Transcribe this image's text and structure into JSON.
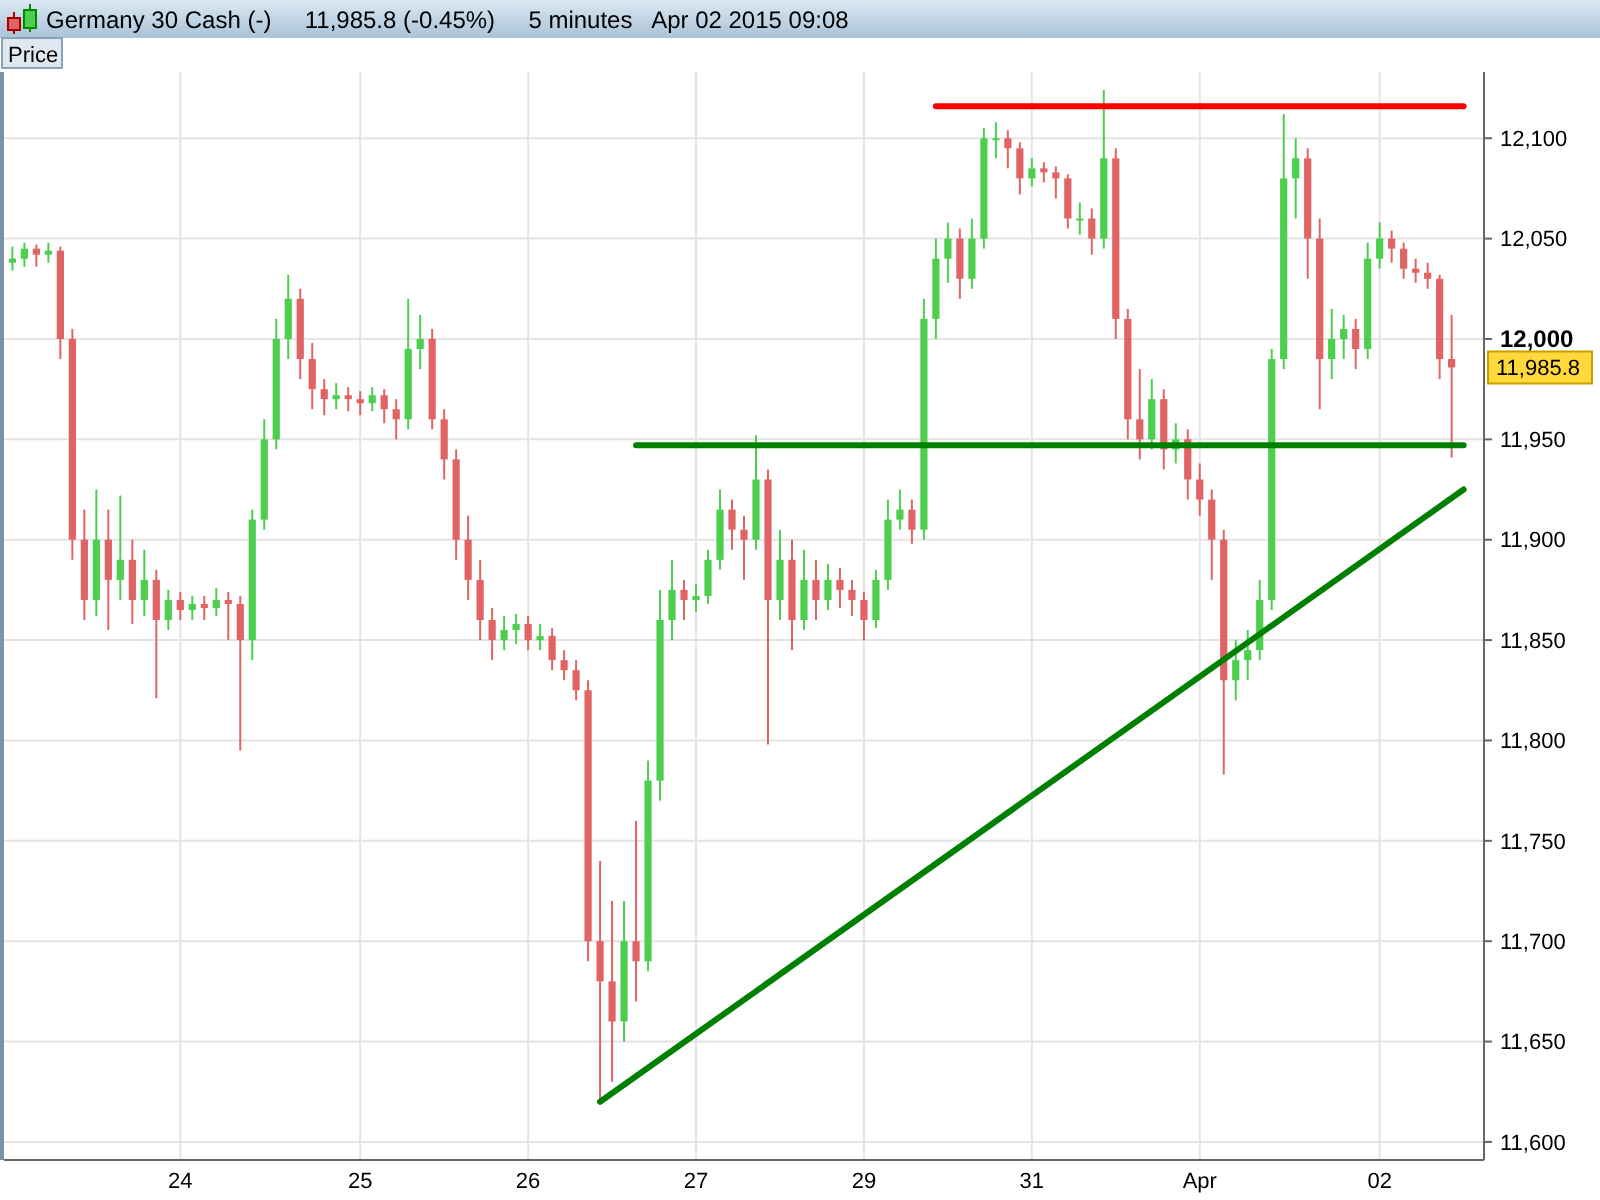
{
  "chart_data": {
    "type": "candlestick",
    "title": "Germany 30 Cash (-)     11,985.8 (-0.45%)     5 minutes   Apr 02 2015 09:08",
    "annotations": [
      "Price",
      "11,985.8"
    ],
    "categories": [
      null,
      null,
      null,
      null,
      null,
      null,
      null,
      null,
      null,
      null,
      null,
      null,
      null,
      null,
      "24",
      null,
      null,
      null,
      null,
      null,
      null,
      null,
      null,
      null,
      null,
      null,
      null,
      null,
      null,
      "25",
      null,
      null,
      null,
      null,
      null,
      null,
      null,
      null,
      null,
      null,
      null,
      null,
      null,
      "26",
      null,
      null,
      null,
      null,
      null,
      null,
      null,
      null,
      null,
      null,
      null,
      null,
      null,
      "27",
      null,
      null,
      null,
      null,
      null,
      null,
      null,
      null,
      null,
      null,
      null,
      null,
      null,
      "29",
      null,
      null,
      null,
      null,
      null,
      null,
      null,
      null,
      null,
      null,
      null,
      null,
      null,
      "31",
      null,
      null,
      null,
      null,
      null,
      null,
      null,
      null,
      null,
      null,
      null,
      null,
      null,
      "Apr",
      null,
      null,
      null,
      null,
      null,
      null,
      null,
      null,
      null,
      null,
      null,
      null,
      null,
      null,
      "02",
      null,
      null,
      null,
      null,
      null,
      null,
      null,
      null
    ],
    "ohlc": [
      [
        12038,
        12046,
        12034,
        12040
      ],
      [
        12040,
        12048,
        12036,
        12045
      ],
      [
        12045,
        12047,
        12036,
        12042
      ],
      [
        12042,
        12048,
        12038,
        12044
      ],
      [
        12044,
        12046,
        11990,
        12000
      ],
      [
        12000,
        12005,
        11890,
        11900
      ],
      [
        11900,
        11915,
        11860,
        11870
      ],
      [
        11870,
        11925,
        11862,
        11900
      ],
      [
        11900,
        11915,
        11855,
        11880
      ],
      [
        11880,
        11922,
        11870,
        11890
      ],
      [
        11890,
        11900,
        11858,
        11870
      ],
      [
        11870,
        11895,
        11862,
        11880
      ],
      [
        11880,
        11885,
        11821,
        11860
      ],
      [
        11860,
        11875,
        11855,
        11870
      ],
      [
        11870,
        11874,
        11860,
        11865
      ],
      [
        11865,
        11872,
        11860,
        11868
      ],
      [
        11868,
        11872,
        11860,
        11866
      ],
      [
        11866,
        11876,
        11862,
        11870
      ],
      [
        11870,
        11874,
        11850,
        11868
      ],
      [
        11868,
        11872,
        11795,
        11850
      ],
      [
        11850,
        11915,
        11840,
        11910
      ],
      [
        11910,
        11960,
        11905,
        11950
      ],
      [
        11950,
        12010,
        11945,
        12000
      ],
      [
        12000,
        12032,
        11990,
        12020
      ],
      [
        12020,
        12025,
        11980,
        11990
      ],
      [
        11990,
        11998,
        11965,
        11975
      ],
      [
        11975,
        11980,
        11962,
        11970
      ],
      [
        11970,
        11978,
        11965,
        11972
      ],
      [
        11972,
        11976,
        11964,
        11970
      ],
      [
        11970,
        11974,
        11962,
        11968
      ],
      [
        11968,
        11976,
        11964,
        11972
      ],
      [
        11972,
        11975,
        11958,
        11965
      ],
      [
        11965,
        11970,
        11950,
        11960
      ],
      [
        11960,
        12020,
        11955,
        11995
      ],
      [
        11995,
        12012,
        11985,
        12000
      ],
      [
        12000,
        12005,
        11955,
        11960
      ],
      [
        11960,
        11965,
        11930,
        11940
      ],
      [
        11940,
        11945,
        11890,
        11900
      ],
      [
        11900,
        11912,
        11870,
        11880
      ],
      [
        11880,
        11890,
        11850,
        11860
      ],
      [
        11860,
        11866,
        11840,
        11850
      ],
      [
        11850,
        11862,
        11845,
        11855
      ],
      [
        11855,
        11863,
        11848,
        11858
      ],
      [
        11858,
        11862,
        11845,
        11850
      ],
      [
        11850,
        11858,
        11845,
        11852
      ],
      [
        11852,
        11856,
        11835,
        11840
      ],
      [
        11840,
        11845,
        11830,
        11835
      ],
      [
        11835,
        11840,
        11820,
        11825
      ],
      [
        11825,
        11830,
        11690,
        11700
      ],
      [
        11700,
        11740,
        11620,
        11680
      ],
      [
        11680,
        11720,
        11630,
        11660
      ],
      [
        11660,
        11720,
        11650,
        11700
      ],
      [
        11700,
        11760,
        11670,
        11690
      ],
      [
        11690,
        11790,
        11685,
        11780
      ],
      [
        11780,
        11875,
        11770,
        11860
      ],
      [
        11860,
        11890,
        11850,
        11875
      ],
      [
        11875,
        11880,
        11860,
        11870
      ],
      [
        11870,
        11878,
        11864,
        11872
      ],
      [
        11872,
        11895,
        11868,
        11890
      ],
      [
        11890,
        11925,
        11885,
        11915
      ],
      [
        11915,
        11920,
        11895,
        11905
      ],
      [
        11905,
        11912,
        11880,
        11900
      ],
      [
        11900,
        11952,
        11895,
        11930
      ],
      [
        11930,
        11935,
        11798,
        11870
      ],
      [
        11870,
        11905,
        11860,
        11890
      ],
      [
        11890,
        11900,
        11845,
        11860
      ],
      [
        11860,
        11895,
        11855,
        11880
      ],
      [
        11880,
        11890,
        11860,
        11870
      ],
      [
        11870,
        11888,
        11865,
        11880
      ],
      [
        11880,
        11886,
        11866,
        11875
      ],
      [
        11875,
        11880,
        11862,
        11870
      ],
      [
        11870,
        11874,
        11850,
        11860
      ],
      [
        11860,
        11885,
        11856,
        11880
      ],
      [
        11880,
        11920,
        11875,
        11910
      ],
      [
        11910,
        11925,
        11905,
        11915
      ],
      [
        11915,
        11920,
        11898,
        11905
      ],
      [
        11905,
        12020,
        11900,
        12010
      ],
      [
        12010,
        12050,
        12000,
        12040
      ],
      [
        12040,
        12058,
        12028,
        12050
      ],
      [
        12050,
        12055,
        12020,
        12030
      ],
      [
        12030,
        12060,
        12025,
        12050
      ],
      [
        12050,
        12105,
        12045,
        12100
      ],
      [
        12100,
        12108,
        12090,
        12100
      ],
      [
        12100,
        12104,
        12085,
        12095
      ],
      [
        12095,
        12098,
        12072,
        12080
      ],
      [
        12080,
        12090,
        12076,
        12085
      ],
      [
        12085,
        12088,
        12078,
        12083
      ],
      [
        12083,
        12086,
        12070,
        12080
      ],
      [
        12080,
        12082,
        12055,
        12060
      ],
      [
        12060,
        12068,
        12052,
        12060
      ],
      [
        12060,
        12065,
        12042,
        12050
      ],
      [
        12050,
        12124,
        12045,
        12090
      ],
      [
        12090,
        12095,
        12000,
        12010
      ],
      [
        12010,
        12015,
        11950,
        11960
      ],
      [
        11960,
        11985,
        11940,
        11950
      ],
      [
        11950,
        11980,
        11945,
        11970
      ],
      [
        11970,
        11975,
        11935,
        11945
      ],
      [
        11945,
        11958,
        11938,
        11950
      ],
      [
        11950,
        11955,
        11920,
        11930
      ],
      [
        11930,
        11938,
        11912,
        11920
      ],
      [
        11920,
        11925,
        11880,
        11900
      ],
      [
        11900,
        11905,
        11783,
        11830
      ],
      [
        11830,
        11850,
        11820,
        11840
      ],
      [
        11840,
        11855,
        11830,
        11845
      ],
      [
        11845,
        11880,
        11840,
        11870
      ],
      [
        11870,
        11995,
        11865,
        11990
      ],
      [
        11990,
        12112,
        11985,
        12080
      ],
      [
        12080,
        12100,
        12060,
        12090
      ],
      [
        12090,
        12095,
        12030,
        12050
      ],
      [
        12050,
        12060,
        11965,
        11990
      ],
      [
        11990,
        12015,
        11980,
        12000
      ],
      [
        12000,
        12012,
        11990,
        12005
      ],
      [
        12005,
        12010,
        11985,
        11995
      ],
      [
        11995,
        12048,
        11990,
        12040
      ],
      [
        12040,
        12058,
        12035,
        12050
      ],
      [
        12050,
        12054,
        12038,
        12045
      ],
      [
        12045,
        12048,
        12030,
        12035
      ],
      [
        12035,
        12040,
        12028,
        12033
      ],
      [
        12033,
        12038,
        12025,
        12030
      ],
      [
        12030,
        12032,
        11980,
        11990
      ],
      [
        11990,
        12012,
        11941,
        11985.8
      ],
      null,
      null
    ],
    "colors": [
      "#4ccf4c",
      "#4ccf4c",
      "#e06464",
      "#4ccf4c",
      "#e06464",
      "#e06464",
      "#e06464",
      "#4ccf4c",
      "#e06464",
      "#4ccf4c",
      "#e06464",
      "#4ccf4c",
      "#e06464",
      "#4ccf4c",
      "#e06464",
      "#4ccf4c",
      "#e06464",
      "#4ccf4c",
      "#e06464",
      "#e06464",
      "#4ccf4c",
      "#4ccf4c",
      "#4ccf4c",
      "#4ccf4c",
      "#e06464",
      "#e06464",
      "#e06464",
      "#4ccf4c",
      "#e06464",
      "#e06464",
      "#4ccf4c",
      "#e06464",
      "#e06464",
      "#4ccf4c",
      "#4ccf4c",
      "#e06464",
      "#e06464",
      "#e06464",
      "#e06464",
      "#e06464",
      "#e06464",
      "#4ccf4c",
      "#4ccf4c",
      "#e06464",
      "#4ccf4c",
      "#e06464",
      "#e06464",
      "#e06464",
      "#e06464",
      "#e06464",
      "#e06464",
      "#4ccf4c",
      "#e06464",
      "#4ccf4c",
      "#4ccf4c",
      "#4ccf4c",
      "#e06464",
      "#4ccf4c",
      "#4ccf4c",
      "#4ccf4c",
      "#e06464",
      "#e06464",
      "#4ccf4c",
      "#e06464",
      "#4ccf4c",
      "#e06464",
      "#4ccf4c",
      "#e06464",
      "#4ccf4c",
      "#e06464",
      "#e06464",
      "#e06464",
      "#4ccf4c",
      "#4ccf4c",
      "#4ccf4c",
      "#e06464",
      "#4ccf4c",
      "#4ccf4c",
      "#4ccf4c",
      "#e06464",
      "#4ccf4c",
      "#4ccf4c",
      "#4ccf4c",
      "#e06464",
      "#e06464",
      "#4ccf4c",
      "#e06464",
      "#e06464",
      "#e06464",
      "#4ccf4c",
      "#e06464",
      "#4ccf4c",
      "#e06464",
      "#e06464",
      "#e06464",
      "#4ccf4c",
      "#e06464",
      "#4ccf4c",
      "#e06464",
      "#e06464",
      "#e06464",
      "#e06464",
      "#4ccf4c",
      "#4ccf4c",
      "#4ccf4c",
      "#4ccf4c",
      "#4ccf4c",
      "#4ccf4c",
      "#e06464",
      "#e06464",
      "#4ccf4c",
      "#4ccf4c",
      "#e06464",
      "#4ccf4c",
      "#4ccf4c",
      "#e06464",
      "#e06464",
      "#e06464",
      "#e06464",
      "#e06464",
      "#e06464",
      null,
      null
    ],
    "series": [
      {
        "type": "line",
        "color": "#008000",
        "values": [
          null,
          null,
          null,
          null,
          null,
          null,
          null,
          null,
          null,
          null,
          null,
          null,
          null,
          null,
          null,
          null,
          null,
          null,
          null,
          null,
          null,
          null,
          null,
          null,
          null,
          null,
          null,
          null,
          null,
          null,
          null,
          null,
          null,
          null,
          null,
          null,
          null,
          null,
          null,
          null,
          null,
          null,
          null,
          null,
          null,
          null,
          null,
          null,
          null,
          11620,
          null,
          null,
          null,
          null,
          null,
          null,
          null,
          null,
          null,
          null,
          null,
          null,
          null,
          null,
          null,
          null,
          null,
          null,
          null,
          null,
          null,
          null,
          null,
          null,
          null,
          null,
          null,
          null,
          null,
          null,
          null,
          null,
          null,
          null,
          null,
          null,
          null,
          null,
          null,
          null,
          null,
          null,
          null,
          null,
          null,
          null,
          null,
          null,
          null,
          null,
          null,
          null,
          null,
          null,
          null,
          null,
          null,
          null,
          null,
          null,
          null,
          null,
          null,
          null,
          null,
          null,
          null,
          null,
          null,
          null,
          null,
          11925,
          null
        ]
      },
      {
        "type": "line",
        "color": "#008000",
        "values": [
          null,
          null,
          null,
          null,
          null,
          null,
          null,
          null,
          null,
          null,
          null,
          null,
          null,
          null,
          null,
          null,
          null,
          null,
          null,
          null,
          null,
          null,
          null,
          null,
          null,
          null,
          null,
          null,
          null,
          null,
          null,
          null,
          null,
          null,
          null,
          null,
          null,
          null,
          null,
          null,
          null,
          null,
          null,
          null,
          null,
          null,
          null,
          null,
          null,
          null,
          null,
          null,
          11947,
          null,
          null,
          null,
          null,
          null,
          null,
          null,
          null,
          null,
          null,
          null,
          null,
          null,
          null,
          null,
          null,
          null,
          null,
          null,
          null,
          null,
          null,
          null,
          null,
          null,
          null,
          null,
          null,
          null,
          null,
          null,
          null,
          null,
          null,
          null,
          null,
          null,
          null,
          null,
          null,
          null,
          null,
          null,
          null,
          null,
          null,
          null,
          null,
          null,
          null,
          null,
          null,
          null,
          null,
          null,
          null,
          null,
          null,
          null,
          null,
          null,
          null,
          null,
          null,
          null,
          null,
          null,
          null,
          11947,
          null
        ]
      },
      {
        "type": "line",
        "color": "#ff0000",
        "values": [
          null,
          null,
          null,
          null,
          null,
          null,
          null,
          null,
          null,
          null,
          null,
          null,
          null,
          null,
          null,
          null,
          null,
          null,
          null,
          null,
          null,
          null,
          null,
          null,
          null,
          null,
          null,
          null,
          null,
          null,
          null,
          null,
          null,
          null,
          null,
          null,
          null,
          null,
          null,
          null,
          null,
          null,
          null,
          null,
          null,
          null,
          null,
          null,
          null,
          null,
          null,
          null,
          null,
          null,
          null,
          null,
          null,
          null,
          null,
          null,
          null,
          null,
          null,
          null,
          null,
          null,
          null,
          null,
          null,
          null,
          null,
          null,
          null,
          null,
          null,
          null,
          null,
          12116,
          null,
          null,
          null,
          null,
          null,
          null,
          null,
          null,
          null,
          null,
          null,
          null,
          null,
          null,
          null,
          null,
          null,
          null,
          null,
          null,
          null,
          null,
          null,
          null,
          null,
          null,
          null,
          null,
          null,
          null,
          null,
          null,
          null,
          null,
          null,
          null,
          null,
          null,
          null,
          null,
          null,
          null,
          null,
          12116,
          null
        ]
      }
    ],
    "marker": "none",
    "line_style": "solid",
    "ylim": [
      11591,
      12133
    ],
    "yticks": [
      {
        "value": 11600,
        "label": "11,600"
      },
      {
        "value": 11650,
        "label": "11,650"
      },
      {
        "value": 11700,
        "label": "11,700"
      },
      {
        "value": 11750,
        "label": "11,750"
      },
      {
        "value": 11800,
        "label": "11,800"
      },
      {
        "value": 11850,
        "label": "11,850"
      },
      {
        "value": 11900,
        "label": "11,900"
      },
      {
        "value": 11950,
        "label": "11,950"
      },
      {
        "value": 12000,
        "label": "12,000"
      },
      {
        "value": 12050,
        "label": "12,050"
      },
      {
        "value": 12100,
        "label": "12,100"
      }
    ],
    "grid": true
  }
}
